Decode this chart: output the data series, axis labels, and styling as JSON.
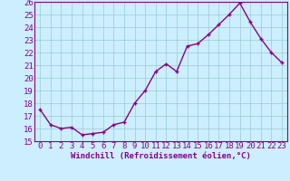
{
  "x": [
    0,
    1,
    2,
    3,
    4,
    5,
    6,
    7,
    8,
    9,
    10,
    11,
    12,
    13,
    14,
    15,
    16,
    17,
    18,
    19,
    20,
    21,
    22,
    23
  ],
  "y": [
    17.5,
    16.3,
    16.0,
    16.1,
    15.5,
    15.6,
    15.7,
    16.3,
    16.5,
    18.0,
    19.0,
    20.5,
    21.1,
    20.5,
    22.5,
    22.7,
    23.4,
    24.2,
    25.0,
    25.9,
    24.4,
    23.1,
    22.0,
    21.2
  ],
  "line_color": "#880088",
  "marker": "+",
  "bg_color": "#cceeff",
  "grid_color": "#99cccc",
  "xlabel": "Windchill (Refroidissement éolien,°C)",
  "xlim": [
    -0.5,
    23.5
  ],
  "ylim": [
    15,
    26
  ],
  "yticks": [
    15,
    16,
    17,
    18,
    19,
    20,
    21,
    22,
    23,
    24,
    25,
    26
  ],
  "xticks": [
    0,
    1,
    2,
    3,
    4,
    5,
    6,
    7,
    8,
    9,
    10,
    11,
    12,
    13,
    14,
    15,
    16,
    17,
    18,
    19,
    20,
    21,
    22,
    23
  ],
  "xlabel_fontsize": 6.5,
  "tick_fontsize": 6.5,
  "line_width": 1.0,
  "marker_size": 3.5
}
